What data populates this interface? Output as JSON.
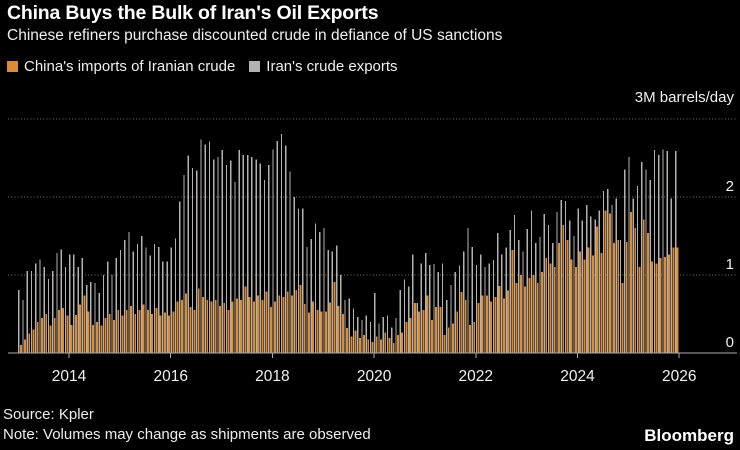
{
  "header": {
    "title": "China Buys the Bulk of Iran's Oil Exports",
    "subtitle": "Chinese refiners purchase discounted crude in defiance of US sanctions"
  },
  "legend": [
    {
      "label": "China's imports of Iranian crude",
      "color": "#DC8C33"
    },
    {
      "label": "Iran's crude exports",
      "color": "#B3B2B0"
    }
  ],
  "footer": {
    "source": "Source: Kpler",
    "note": "Note: Volumes may change as shipments are observed",
    "brand": "Bloomberg"
  },
  "chart_data": {
    "type": "bar",
    "title": "China Buys the Bulk of Iran's Oil Exports",
    "unit_label": "3M barrels/day",
    "x_start_year": 2013,
    "months": 156,
    "x_ticks": [
      2014,
      2016,
      2018,
      2020,
      2022,
      2024,
      2026
    ],
    "y_ticks": [
      0,
      1,
      2
    ],
    "y_gridlines": [
      1,
      2,
      3
    ],
    "ylim": [
      0,
      3
    ],
    "grid": "dotted-horizontal",
    "legend_position": "top-left",
    "colors": {
      "axis": "#ABABAB",
      "gridline": "#6F6F6F",
      "text": "#F0F0F0"
    },
    "series": [
      {
        "name": "Iran's crude exports",
        "color": "#B3B2B0",
        "values": [
          0.81,
          0.68,
          1.05,
          1.05,
          1.15,
          1.2,
          1.1,
          0.95,
          1.05,
          1.28,
          1.33,
          1.1,
          1.26,
          1.26,
          1.1,
          1.22,
          0.87,
          0.91,
          0.9,
          0.77,
          1.0,
          1.17,
          1.0,
          1.22,
          1.32,
          1.45,
          1.55,
          1.3,
          1.4,
          1.5,
          1.35,
          1.25,
          1.4,
          1.36,
          1.17,
          1.17,
          1.35,
          1.47,
          1.94,
          2.28,
          2.53,
          2.37,
          2.34,
          2.74,
          2.67,
          2.71,
          2.48,
          2.51,
          2.6,
          2.41,
          2.47,
          2.19,
          2.6,
          2.54,
          2.54,
          2.51,
          2.48,
          2.43,
          2.22,
          2.41,
          2.61,
          2.72,
          2.81,
          2.66,
          2.33,
          2.0,
          1.85,
          1.85,
          1.36,
          1.46,
          1.66,
          1.55,
          1.6,
          1.32,
          1.3,
          1.38,
          1.0,
          0.68,
          0.7,
          0.57,
          0.46,
          0.42,
          0.48,
          0.4,
          0.77,
          0.38,
          0.46,
          0.48,
          0.33,
          0.45,
          0.81,
          0.94,
          0.85,
          1.26,
          0.64,
          1.15,
          1.28,
          1.13,
          1.14,
          1.04,
          1.15,
          0.68,
          0.87,
          1.04,
          1.12,
          1.3,
          1.6,
          1.36,
          1.13,
          1.26,
          1.1,
          1.15,
          1.19,
          1.54,
          1.26,
          1.35,
          1.58,
          1.77,
          1.45,
          1.3,
          1.59,
          1.83,
          1.41,
          1.49,
          1.78,
          1.64,
          1.41,
          1.81,
          1.96,
          1.95,
          1.7,
          1.5,
          1.85,
          1.7,
          1.9,
          1.75,
          1.71,
          1.83,
          2.08,
          2.1,
          1.9,
          1.98,
          1.45,
          2.35,
          2.51,
          1.98,
          2.14,
          2.45,
          2.35,
          2.22,
          2.6,
          2.54,
          2.61,
          2.59,
          1.98,
          2.59
        ]
      },
      {
        "name": "China's imports of Iranian crude",
        "color": "#DC8C33",
        "values": [
          0.1,
          0.17,
          0.25,
          0.3,
          0.4,
          0.45,
          0.5,
          0.35,
          0.45,
          0.55,
          0.58,
          0.48,
          0.36,
          0.49,
          0.62,
          0.74,
          0.53,
          0.36,
          0.4,
          0.35,
          0.45,
          0.5,
          0.42,
          0.55,
          0.48,
          0.55,
          0.6,
          0.5,
          0.55,
          0.62,
          0.55,
          0.5,
          0.58,
          0.48,
          0.52,
          0.48,
          0.53,
          0.66,
          0.68,
          0.76,
          0.59,
          0.55,
          0.83,
          0.72,
          0.68,
          0.66,
          0.68,
          0.6,
          0.64,
          0.55,
          0.66,
          0.7,
          0.68,
          0.85,
          0.72,
          0.66,
          0.74,
          0.68,
          0.79,
          0.59,
          0.66,
          0.74,
          0.72,
          0.79,
          0.74,
          0.81,
          0.87,
          0.63,
          0.52,
          0.66,
          0.55,
          0.53,
          0.53,
          0.65,
          0.91,
          0.6,
          0.5,
          0.32,
          0.21,
          0.29,
          0.19,
          0.23,
          0.17,
          0.14,
          0.21,
          0.17,
          0.26,
          0.19,
          0.13,
          0.23,
          0.26,
          0.4,
          0.45,
          0.64,
          0.53,
          0.55,
          0.74,
          0.42,
          0.59,
          0.59,
          0.23,
          0.33,
          0.38,
          0.53,
          0.78,
          0.68,
          0.36,
          0.4,
          0.64,
          0.74,
          0.74,
          0.66,
          0.72,
          0.86,
          0.7,
          0.8,
          1.32,
          0.9,
          1.0,
          0.85,
          0.96,
          1.0,
          0.9,
          1.04,
          1.22,
          1.15,
          1.1,
          1.41,
          1.64,
          1.45,
          1.2,
          1.1,
          1.3,
          1.2,
          1.35,
          1.25,
          1.62,
          1.28,
          1.83,
          1.79,
          1.41,
          1.45,
          0.9,
          1.42,
          1.81,
          1.6,
          1.1,
          1.71,
          1.54,
          1.17,
          1.15,
          1.22,
          1.23,
          1.26,
          1.35,
          1.35
        ]
      }
    ]
  }
}
